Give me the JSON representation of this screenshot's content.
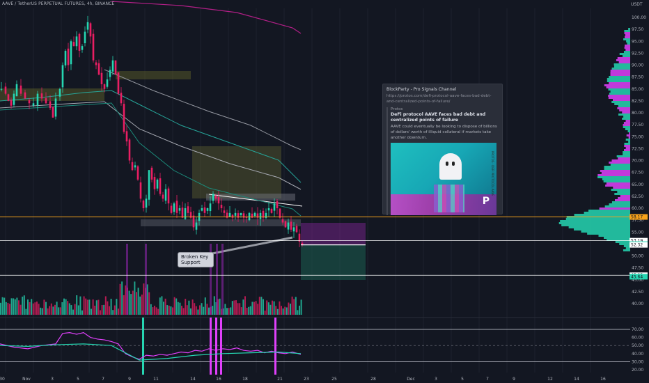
{
  "header": {
    "symbol_line": "AAVE / TetherUS PERPETUAL FUTURES, 4h, BINANCE"
  },
  "price_axis": {
    "currency_label": "USDT",
    "ticks": [
      "100.00",
      "97.50",
      "95.00",
      "92.50",
      "90.00",
      "87.50",
      "85.00",
      "82.50",
      "80.00",
      "77.50",
      "75.00",
      "72.50",
      "70.00",
      "67.50",
      "65.00",
      "62.50",
      "60.00",
      "57.50",
      "55.00",
      "52.50",
      "50.00",
      "47.50",
      "45.00",
      "42.50",
      "40.00"
    ],
    "labels": [
      {
        "text": "58.17",
        "color": "#f7a21b",
        "value": 58.17
      },
      {
        "text": "53.19",
        "color": "#ffffff",
        "value": 53.19
      },
      {
        "text": "52.47",
        "color": "#26d6b2",
        "value": 52.47
      },
      {
        "text": "52.32",
        "color": "#ffffff",
        "value": 52.32
      },
      {
        "text": "45.95",
        "color": "#ffffff",
        "value": 45.95
      },
      {
        "text": "45.64",
        "color": "#26d6b2",
        "value": 45.64
      }
    ]
  },
  "osc_axis": {
    "ticks": [
      "70.00",
      "60.00",
      "50.00",
      "40.00",
      "30.00",
      "20.00"
    ]
  },
  "time_axis": {
    "ticks": [
      "30",
      "Nov",
      "3",
      "5",
      "7",
      "9",
      "11",
      "14",
      "16",
      "18",
      "21",
      "23",
      "25",
      "28",
      "Dec",
      "3",
      "5",
      "7",
      "9",
      "12",
      "14",
      "16"
    ]
  },
  "news": {
    "source": "BlockParty - Pro Signals Channel",
    "url": "https://protos.com/defi-protocol-aave-faces-bad-debt-and-centralized-points-of-failure/",
    "publisher": "Protos",
    "title": "DeFi protocol AAVE faces bad debt and centralized points of failure",
    "body": "AAVE could eventually be looking to dispose of billions of dollars' worth of illiquid collateral if markets take another downturn.",
    "image_side_text": "PROTOS · DEFI PROTOCOL AAVE"
  },
  "callout": {
    "line1": "Broken Key",
    "line2": "Support"
  },
  "colors": {
    "bg": "#131722",
    "bull": "#26d6b2",
    "bear": "#e91e63",
    "magenta": "#e040fb",
    "orange": "#f7a21b",
    "grid": "#1e222d"
  },
  "chart_data": [
    {
      "type": "candlestick",
      "title": "AAVE / TetherUS PERPETUAL FUTURES, 4h, BINANCE",
      "ylabel": "USDT",
      "ylim": [
        38,
        101
      ],
      "x_range": [
        "Oct 30",
        "Dec 17"
      ],
      "horizontal_levels": [
        58.17,
        53.19,
        52.32,
        45.95
      ],
      "close_approx_path": [
        [
          0,
          85
        ],
        [
          6,
          84
        ],
        [
          10,
          82.5
        ],
        [
          14,
          81.5
        ],
        [
          18,
          84
        ],
        [
          22,
          86
        ],
        [
          28,
          84
        ],
        [
          34,
          83
        ],
        [
          40,
          82
        ],
        [
          46,
          82
        ],
        [
          52,
          84
        ],
        [
          58,
          83
        ],
        [
          64,
          82
        ],
        [
          70,
          81
        ],
        [
          74,
          79
        ],
        [
          78,
          83
        ],
        [
          84,
          85
        ],
        [
          88,
          90
        ],
        [
          92,
          93
        ],
        [
          96,
          90
        ],
        [
          100,
          95
        ],
        [
          104,
          94
        ],
        [
          108,
          96
        ],
        [
          112,
          93
        ],
        [
          116,
          94
        ],
        [
          120,
          97
        ],
        [
          124,
          99
        ],
        [
          128,
          96
        ],
        [
          132,
          91
        ],
        [
          136,
          90
        ],
        [
          140,
          88
        ],
        [
          144,
          86
        ],
        [
          148,
          85
        ],
        [
          152,
          87
        ],
        [
          156,
          89
        ],
        [
          160,
          91
        ],
        [
          164,
          88
        ],
        [
          168,
          84
        ],
        [
          172,
          82
        ],
        [
          176,
          76
        ],
        [
          180,
          74
        ],
        [
          184,
          70
        ],
        [
          188,
          68
        ],
        [
          192,
          69
        ],
        [
          196,
          66
        ],
        [
          200,
          62
        ],
        [
          204,
          60
        ],
        [
          208,
          62
        ],
        [
          212,
          68
        ],
        [
          216,
          66
        ],
        [
          220,
          64
        ],
        [
          224,
          66
        ],
        [
          228,
          63
        ],
        [
          232,
          62
        ],
        [
          236,
          64
        ],
        [
          240,
          61
        ],
        [
          244,
          59
        ],
        [
          248,
          61
        ],
        [
          252,
          59
        ],
        [
          256,
          60
        ],
        [
          260,
          58
        ],
        [
          264,
          60
        ],
        [
          268,
          59
        ],
        [
          272,
          58
        ],
        [
          276,
          56
        ],
        [
          280,
          57
        ],
        [
          284,
          59
        ],
        [
          288,
          60
        ],
        [
          292,
          59
        ],
        [
          296,
          60
        ],
        [
          300,
          61
        ],
        [
          304,
          63
        ],
        [
          308,
          62
        ],
        [
          312,
          61
        ],
        [
          316,
          60
        ],
        [
          320,
          59
        ],
        [
          324,
          58
        ],
        [
          328,
          59
        ],
        [
          332,
          58
        ],
        [
          336,
          59
        ],
        [
          340,
          58
        ],
        [
          344,
          59
        ],
        [
          348,
          58
        ],
        [
          352,
          58
        ],
        [
          356,
          59
        ],
        [
          360,
          58
        ],
        [
          364,
          59
        ],
        [
          368,
          58
        ],
        [
          372,
          59
        ],
        [
          376,
          58
        ],
        [
          380,
          59
        ],
        [
          384,
          60
        ],
        [
          388,
          59
        ],
        [
          392,
          61
        ],
        [
          396,
          60
        ],
        [
          400,
          58
        ],
        [
          404,
          57
        ],
        [
          408,
          56
        ],
        [
          412,
          57
        ],
        [
          416,
          55.5
        ],
        [
          420,
          56
        ],
        [
          424,
          55
        ],
        [
          428,
          53
        ],
        [
          432,
          52.3
        ]
      ]
    },
    {
      "type": "line",
      "title": "",
      "ylim": [
        20,
        72
      ],
      "hlines": [
        70,
        50,
        30
      ],
      "series": [
        {
          "color": "#e040fb",
          "values": [
            [
              0,
              52
            ],
            [
              20,
              48
            ],
            [
              40,
              46
            ],
            [
              60,
              50
            ],
            [
              80,
              52
            ],
            [
              90,
              65
            ],
            [
              100,
              66
            ],
            [
              110,
              64
            ],
            [
              120,
              66
            ],
            [
              130,
              60
            ],
            [
              140,
              58
            ],
            [
              150,
              57
            ],
            [
              160,
              55
            ],
            [
              170,
              52
            ],
            [
              180,
              40
            ],
            [
              190,
              36
            ],
            [
              200,
              33
            ],
            [
              210,
              38
            ],
            [
              220,
              37
            ],
            [
              230,
              39
            ],
            [
              240,
              38
            ],
            [
              250,
              40
            ],
            [
              260,
              42
            ],
            [
              270,
              41
            ],
            [
              280,
              44
            ],
            [
              290,
              43
            ],
            [
              300,
              46
            ],
            [
              310,
              44
            ],
            [
              320,
              46
            ],
            [
              330,
              45
            ],
            [
              340,
              47
            ],
            [
              350,
              44
            ],
            [
              360,
              43
            ],
            [
              370,
              44
            ],
            [
              380,
              41
            ],
            [
              390,
              43
            ],
            [
              400,
              41
            ],
            [
              410,
              40
            ],
            [
              420,
              42
            ],
            [
              432,
              39
            ]
          ]
        },
        {
          "color": "#26d6b2",
          "values": [
            [
              0,
              50
            ],
            [
              40,
              49
            ],
            [
              80,
              51
            ],
            [
              120,
              52
            ],
            [
              160,
              50
            ],
            [
              200,
              32
            ],
            [
              240,
              34
            ],
            [
              280,
              38
            ],
            [
              320,
              40
            ],
            [
              360,
              41
            ],
            [
              400,
              42
            ],
            [
              432,
              40
            ]
          ]
        }
      ]
    },
    {
      "type": "bar",
      "title": "Volume",
      "note": "volume histogram under price, relative heights"
    }
  ]
}
